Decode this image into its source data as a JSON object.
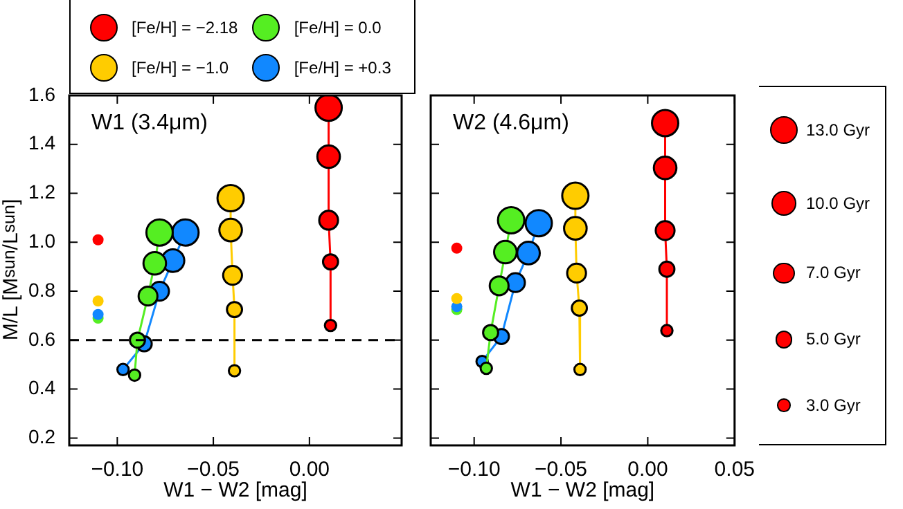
{
  "chart_data": [
    {
      "type": "line",
      "title": "W1 (3.4μm)",
      "xlabel": "W1 − W2 [mag]",
      "ylabel": "M/L [M$_{sun}$/L$_{sun}$]",
      "xlim": [
        -0.125,
        0.048
      ],
      "ylim": [
        0.17,
        1.6
      ],
      "xticks": [
        {
          "value": -0.1,
          "label": "−0.10"
        },
        {
          "value": -0.05,
          "label": "−0.05"
        },
        {
          "value": 0,
          "label": "0.00"
        }
      ],
      "yticks": [
        0.2,
        0.4,
        0.6,
        0.8,
        {
          "value": 1,
          "label": "1.0"
        },
        1.2,
        1.4,
        1.6
      ],
      "legend": "top",
      "marker": "circle",
      "line_style": "solid",
      "grid": false,
      "ref_lines": [
        {
          "axis": "y",
          "value": 0.6,
          "color": "#000000",
          "line_style": "dashed"
        }
      ],
      "series": [
        {
          "name": "[Fe/H] = −2.18",
          "color": "#ff0000",
          "x": [
            0.01,
            0.01,
            0.01,
            0.011,
            0.011
          ],
          "values": [
            1.55,
            1.35,
            1.09,
            0.92,
            0.66
          ]
        },
        {
          "name": "[Fe/H] = −1.0",
          "color": "#ffcc00",
          "x": [
            -0.041,
            -0.041,
            -0.04,
            -0.039,
            -0.039
          ],
          "values": [
            1.18,
            1.05,
            0.865,
            0.725,
            0.475
          ]
        },
        {
          "name": "[Fe/H] = 0.0",
          "color": "#55ee22",
          "x": [
            -0.078,
            -0.0805,
            -0.084,
            -0.0895,
            -0.091
          ],
          "values": [
            1.04,
            0.914,
            0.78,
            0.6,
            0.457
          ]
        },
        {
          "name": "[Fe/H] = +0.3",
          "color": "#1188ff",
          "x": [
            -0.0645,
            -0.071,
            -0.078,
            -0.086,
            -0.097
          ],
          "values": [
            1.04,
            0.925,
            0.8,
            0.585,
            0.48
          ]
        },
        {
          "type": "scatter",
          "x": [
            -0.11,
            -0.11,
            -0.11,
            -0.11
          ],
          "values": [
            1.01,
            0.69,
            0.705,
            0.76
          ],
          "colors": [
            "#ff0000",
            "#55ee22",
            "#1188ff",
            "#ffcc00"
          ]
        }
      ]
    },
    {
      "type": "line",
      "title": "W2 (4.6μm)",
      "xlabel": "W1 − W2 [mag]",
      "xlim": [
        -0.125,
        0.05
      ],
      "ylim": [
        0.17,
        1.6
      ],
      "xticks": [
        {
          "value": -0.1,
          "label": "−0.10"
        },
        {
          "value": -0.05,
          "label": "−0.05"
        },
        {
          "value": 0,
          "label": "0.00"
        },
        0.05
      ],
      "yticks": [
        0.2,
        0.4,
        0.6,
        0.8,
        1,
        1.2,
        1.4,
        1.6
      ],
      "tick_labels": "x",
      "marker": "circle",
      "line_style": "solid",
      "grid": false,
      "annotations": [
        "13.0 Gyr",
        "10.0 Gyr",
        "7.0 Gyr",
        "5.0 Gyr",
        "3.0 Gyr"
      ],
      "series": [
        {
          "color": "#ff0000",
          "x": [
            0.01,
            0.01,
            0.01,
            0.011,
            0.011
          ],
          "values": [
            1.487,
            1.304,
            1.048,
            0.89,
            0.639
          ]
        },
        {
          "color": "#ffcc00",
          "x": [
            -0.0417,
            -0.0417,
            -0.041,
            -0.0394,
            -0.039
          ],
          "values": [
            1.19,
            1.057,
            0.874,
            0.731,
            0.48
          ]
        },
        {
          "color": "#55ee22",
          "x": [
            -0.0787,
            -0.082,
            -0.0856,
            -0.0905,
            -0.093
          ],
          "values": [
            1.09,
            0.96,
            0.822,
            0.631,
            0.485
          ]
        },
        {
          "color": "#1188ff",
          "x": [
            -0.0628,
            -0.0687,
            -0.0762,
            -0.0843,
            -0.0954
          ],
          "values": [
            1.078,
            0.956,
            0.835,
            0.615,
            0.513
          ]
        },
        {
          "type": "scatter",
          "x": [
            -0.11,
            -0.11,
            -0.11,
            -0.11
          ],
          "values": [
            0.976,
            0.725,
            0.737,
            0.77
          ],
          "colors": [
            "#ff0000",
            "#55ee22",
            "#1188ff",
            "#ffcc00"
          ]
        }
      ]
    }
  ]
}
